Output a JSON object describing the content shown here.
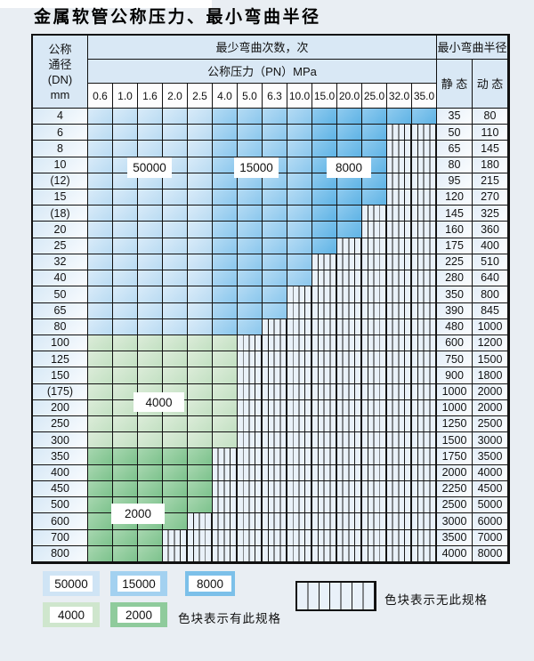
{
  "title": "金属软管公称压力、最小弯曲半径",
  "table": {
    "header": {
      "dn_lines": [
        "公称",
        "通径",
        "(DN)",
        "mm"
      ],
      "bend_times_label": "最少弯曲次数，次",
      "pressure_label": "公称压力（PN）MPa",
      "pressures": [
        "0.6",
        "1.0",
        "1.6",
        "2.0",
        "2.5",
        "4.0",
        "5.0",
        "6.3",
        "10.0",
        "15.0",
        "20.0",
        "25.0",
        "32.0",
        "35.0"
      ],
      "radius_label": "最小弯曲半径",
      "static_label": "静 态",
      "dynamic_label": "动 态"
    },
    "rows": [
      {
        "dn": "4",
        "spec_cols": 14,
        "palette": "blue",
        "static": "35",
        "dynamic": "80"
      },
      {
        "dn": "6",
        "spec_cols": 12,
        "palette": "blue",
        "static": "50",
        "dynamic": "110"
      },
      {
        "dn": "8",
        "spec_cols": 12,
        "palette": "blue",
        "static": "65",
        "dynamic": "145"
      },
      {
        "dn": "10",
        "spec_cols": 12,
        "palette": "blue",
        "static": "80",
        "dynamic": "180"
      },
      {
        "dn": "(12)",
        "spec_cols": 12,
        "palette": "blue",
        "static": "95",
        "dynamic": "215"
      },
      {
        "dn": "15",
        "spec_cols": 12,
        "palette": "blue",
        "static": "120",
        "dynamic": "270"
      },
      {
        "dn": "(18)",
        "spec_cols": 11,
        "palette": "blue",
        "static": "145",
        "dynamic": "325"
      },
      {
        "dn": "20",
        "spec_cols": 11,
        "palette": "blue",
        "static": "160",
        "dynamic": "360"
      },
      {
        "dn": "25",
        "spec_cols": 10,
        "palette": "blue",
        "static": "175",
        "dynamic": "400"
      },
      {
        "dn": "32",
        "spec_cols": 9,
        "palette": "blue",
        "static": "225",
        "dynamic": "510"
      },
      {
        "dn": "40",
        "spec_cols": 9,
        "palette": "blue",
        "static": "280",
        "dynamic": "640"
      },
      {
        "dn": "50",
        "spec_cols": 8,
        "palette": "blue",
        "static": "350",
        "dynamic": "800"
      },
      {
        "dn": "65",
        "spec_cols": 8,
        "palette": "blue",
        "static": "390",
        "dynamic": "845"
      },
      {
        "dn": "80",
        "spec_cols": 7,
        "palette": "blue",
        "static": "480",
        "dynamic": "1000"
      },
      {
        "dn": "100",
        "spec_cols": 6,
        "palette": "g4000",
        "static": "600",
        "dynamic": "1200"
      },
      {
        "dn": "125",
        "spec_cols": 6,
        "palette": "g4000",
        "static": "750",
        "dynamic": "1500"
      },
      {
        "dn": "150",
        "spec_cols": 6,
        "palette": "g4000",
        "static": "900",
        "dynamic": "1800"
      },
      {
        "dn": "(175)",
        "spec_cols": 6,
        "palette": "g4000",
        "static": "1000",
        "dynamic": "2000"
      },
      {
        "dn": "200",
        "spec_cols": 6,
        "palette": "g4000",
        "static": "1000",
        "dynamic": "2000"
      },
      {
        "dn": "250",
        "spec_cols": 6,
        "palette": "g4000",
        "static": "1250",
        "dynamic": "2500"
      },
      {
        "dn": "300",
        "spec_cols": 6,
        "palette": "g4000",
        "static": "1500",
        "dynamic": "3000"
      },
      {
        "dn": "350",
        "spec_cols": 5,
        "palette": "g2000",
        "static": "1750",
        "dynamic": "3500"
      },
      {
        "dn": "400",
        "spec_cols": 5,
        "palette": "g2000",
        "static": "2000",
        "dynamic": "4000"
      },
      {
        "dn": "450",
        "spec_cols": 5,
        "palette": "g2000",
        "static": "2250",
        "dynamic": "4500"
      },
      {
        "dn": "500",
        "spec_cols": 5,
        "palette": "g2000",
        "static": "2500",
        "dynamic": "5000"
      },
      {
        "dn": "600",
        "spec_cols": 4,
        "palette": "g2000",
        "static": "3000",
        "dynamic": "6000"
      },
      {
        "dn": "700",
        "spec_cols": 3,
        "palette": "g2000",
        "static": "3500",
        "dynamic": "7000"
      },
      {
        "dn": "800",
        "spec_cols": 3,
        "palette": "g2000",
        "static": "4000",
        "dynamic": "8000"
      }
    ],
    "blue_bands": {
      "b50000_cols": [
        0,
        4
      ],
      "b15000_cols": [
        5,
        8
      ],
      "b8000_cols": [
        9,
        13
      ]
    }
  },
  "overlays": {
    "l50000": "50000",
    "l15000": "15000",
    "l8000": "8000",
    "l4000": "4000",
    "l2000": "2000"
  },
  "legend": {
    "swatches": [
      {
        "key": "b50000",
        "label": "50000",
        "color": "#cfe4f5"
      },
      {
        "key": "b15000",
        "label": "15000",
        "color": "#a3d1f0"
      },
      {
        "key": "b8000",
        "label": "8000",
        "color": "#7cc0e9"
      },
      {
        "key": "g4000",
        "label": "4000",
        "color": "#cfe6cd"
      },
      {
        "key": "g2000",
        "label": "2000",
        "color": "#8fcb9c"
      }
    ],
    "has_spec_text": "色块表示有此规格",
    "no_spec_text": "色块表示无此规格"
  },
  "colors": {
    "page_bg": "#e9eef3",
    "grid_line": "#1a1a1a",
    "header_bg": "#d9e8f5",
    "blue_50000": "#cfe4f5",
    "blue_15000": "#a3d1f0",
    "blue_8000": "#7cc0e9",
    "green_4000": "#cfe6cd",
    "green_2000": "#8fcb9c",
    "no_spec_stripe": "#e9f1f9"
  }
}
